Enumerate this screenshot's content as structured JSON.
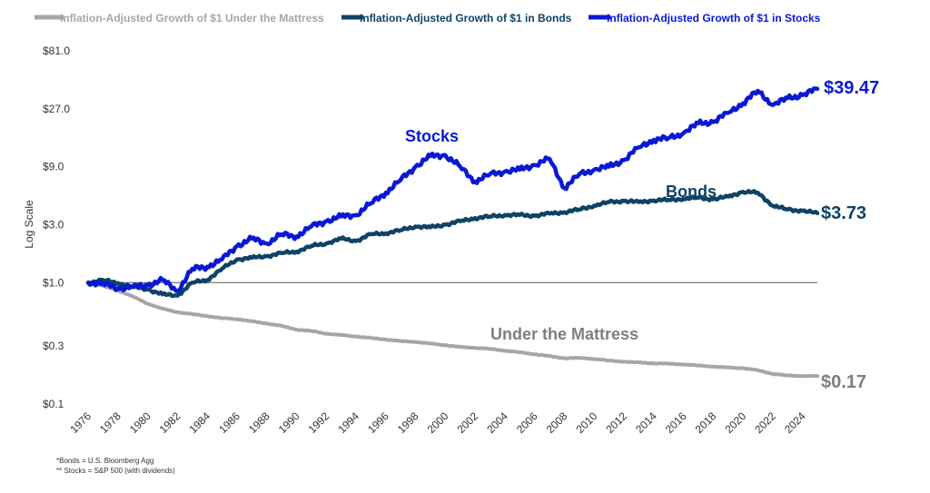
{
  "chart_data": {
    "type": "line",
    "y_axis_title": "Log Scale",
    "y_scale": "log",
    "ylim": [
      0.1,
      81.0
    ],
    "y_ticks": [
      {
        "value": 81.0,
        "label": "$81.0"
      },
      {
        "value": 27.0,
        "label": "$27.0"
      },
      {
        "value": 9.0,
        "label": "$9.0"
      },
      {
        "value": 3.0,
        "label": "$3.0"
      },
      {
        "value": 1.0,
        "label": "$1.0"
      },
      {
        "value": 0.3,
        "label": "$0.3"
      },
      {
        "value": 0.1,
        "label": "$0.1"
      }
    ],
    "xlim": [
      1976,
      2025
    ],
    "x_ticks": [
      "1976",
      "1978",
      "1980",
      "1982",
      "1984",
      "1986",
      "1988",
      "1990",
      "1992",
      "1994",
      "1996",
      "1998",
      "2000",
      "2002",
      "2004",
      "2006",
      "2008",
      "2010",
      "2012",
      "2014",
      "2016",
      "2018",
      "2020",
      "2022",
      "2024"
    ],
    "reference_line": {
      "value": 1.0
    },
    "legend": {
      "placement": "top-left"
    },
    "series": [
      {
        "name": "Inflation-Adjusted Growth of $1 Under the Mattress",
        "short_label": "Under the Mattress",
        "end_label": "$0.17",
        "color": "#a6a6a6",
        "points": [
          [
            1976,
            1.0
          ],
          [
            1977,
            0.94
          ],
          [
            1978,
            0.86
          ],
          [
            1979,
            0.77
          ],
          [
            1980,
            0.67
          ],
          [
            1981,
            0.61
          ],
          [
            1982,
            0.57
          ],
          [
            1983,
            0.55
          ],
          [
            1984,
            0.53
          ],
          [
            1985,
            0.51
          ],
          [
            1986,
            0.5
          ],
          [
            1987,
            0.48
          ],
          [
            1988,
            0.46
          ],
          [
            1989,
            0.44
          ],
          [
            1990,
            0.41
          ],
          [
            1991,
            0.4
          ],
          [
            1992,
            0.38
          ],
          [
            1993,
            0.37
          ],
          [
            1994,
            0.36
          ],
          [
            1995,
            0.35
          ],
          [
            1996,
            0.34
          ],
          [
            1997,
            0.33
          ],
          [
            1998,
            0.325
          ],
          [
            1999,
            0.315
          ],
          [
            2000,
            0.305
          ],
          [
            2001,
            0.295
          ],
          [
            2002,
            0.29
          ],
          [
            2003,
            0.285
          ],
          [
            2004,
            0.275
          ],
          [
            2005,
            0.267
          ],
          [
            2006,
            0.257
          ],
          [
            2007,
            0.248
          ],
          [
            2008,
            0.238
          ],
          [
            2009,
            0.24
          ],
          [
            2010,
            0.235
          ],
          [
            2011,
            0.228
          ],
          [
            2012,
            0.223
          ],
          [
            2013,
            0.22
          ],
          [
            2014,
            0.216
          ],
          [
            2015,
            0.215
          ],
          [
            2016,
            0.212
          ],
          [
            2017,
            0.208
          ],
          [
            2018,
            0.203
          ],
          [
            2019,
            0.2
          ],
          [
            2020,
            0.197
          ],
          [
            2021,
            0.19
          ],
          [
            2022,
            0.177
          ],
          [
            2023,
            0.172
          ],
          [
            2024,
            0.17
          ],
          [
            2025,
            0.17
          ]
        ]
      },
      {
        "name": "Inflation-Adjusted Growth of $1 in Bonds",
        "short_label": "Bonds",
        "end_label": "$3.73",
        "color": "#0e4366",
        "points": [
          [
            1976,
            1.0
          ],
          [
            1977,
            1.05
          ],
          [
            1978,
            0.99
          ],
          [
            1979,
            0.92
          ],
          [
            1980,
            0.88
          ],
          [
            1981,
            0.8
          ],
          [
            1982,
            0.78
          ],
          [
            1983,
            1.0
          ],
          [
            1984,
            1.05
          ],
          [
            1985,
            1.3
          ],
          [
            1986,
            1.55
          ],
          [
            1987,
            1.6
          ],
          [
            1988,
            1.65
          ],
          [
            1989,
            1.75
          ],
          [
            1990,
            1.8
          ],
          [
            1991,
            2.0
          ],
          [
            1992,
            2.1
          ],
          [
            1993,
            2.3
          ],
          [
            1994,
            2.2
          ],
          [
            1995,
            2.5
          ],
          [
            1996,
            2.55
          ],
          [
            1997,
            2.7
          ],
          [
            1998,
            2.9
          ],
          [
            1999,
            2.85
          ],
          [
            2000,
            3.0
          ],
          [
            2001,
            3.2
          ],
          [
            2002,
            3.4
          ],
          [
            2003,
            3.5
          ],
          [
            2004,
            3.6
          ],
          [
            2005,
            3.6
          ],
          [
            2006,
            3.55
          ],
          [
            2007,
            3.7
          ],
          [
            2008,
            3.8
          ],
          [
            2009,
            4.0
          ],
          [
            2010,
            4.3
          ],
          [
            2011,
            4.6
          ],
          [
            2012,
            4.7
          ],
          [
            2013,
            4.6
          ],
          [
            2014,
            4.75
          ],
          [
            2015,
            4.8
          ],
          [
            2016,
            4.9
          ],
          [
            2017,
            5.0
          ],
          [
            2018,
            4.85
          ],
          [
            2019,
            5.1
          ],
          [
            2020,
            5.6
          ],
          [
            2021,
            5.5
          ],
          [
            2022,
            4.3
          ],
          [
            2023,
            4.0
          ],
          [
            2024,
            3.9
          ],
          [
            2025,
            3.73
          ]
        ]
      },
      {
        "name": "Inflation-Adjusted Growth of $1 in Stocks",
        "short_label": "Stocks",
        "end_label": "$39.47",
        "color": "#0a18d6",
        "points": [
          [
            1976,
            1.0
          ],
          [
            1977,
            0.98
          ],
          [
            1978,
            0.9
          ],
          [
            1979,
            0.92
          ],
          [
            1980,
            0.95
          ],
          [
            1981,
            1.05
          ],
          [
            1982,
            0.85
          ],
          [
            1983,
            1.3
          ],
          [
            1984,
            1.35
          ],
          [
            1985,
            1.55
          ],
          [
            1986,
            2.0
          ],
          [
            1987,
            2.3
          ],
          [
            1988,
            2.1
          ],
          [
            1989,
            2.5
          ],
          [
            1990,
            2.4
          ],
          [
            1991,
            2.9
          ],
          [
            1992,
            3.2
          ],
          [
            1993,
            3.5
          ],
          [
            1994,
            3.6
          ],
          [
            1995,
            4.5
          ],
          [
            1996,
            5.5
          ],
          [
            1997,
            7.0
          ],
          [
            1998,
            9.0
          ],
          [
            1999,
            11.0
          ],
          [
            2000,
            11.2
          ],
          [
            2001,
            9.0
          ],
          [
            2002,
            6.8
          ],
          [
            2003,
            7.8
          ],
          [
            2004,
            8.2
          ],
          [
            2005,
            8.5
          ],
          [
            2006,
            9.3
          ],
          [
            2007,
            10.5
          ],
          [
            2008,
            6.0
          ],
          [
            2009,
            7.8
          ],
          [
            2010,
            8.5
          ],
          [
            2011,
            9.0
          ],
          [
            2012,
            10.2
          ],
          [
            2013,
            13.0
          ],
          [
            2014,
            15.0
          ],
          [
            2015,
            15.5
          ],
          [
            2016,
            17.0
          ],
          [
            2017,
            20.5
          ],
          [
            2018,
            21.0
          ],
          [
            2019,
            25.0
          ],
          [
            2020,
            30.0
          ],
          [
            2021,
            38.0
          ],
          [
            2022,
            29.0
          ],
          [
            2023,
            33.0
          ],
          [
            2024,
            35.0
          ],
          [
            2025,
            39.47
          ]
        ]
      }
    ]
  },
  "footnotes": {
    "line1": "*Bonds = U.S. Bloomberg Agg",
    "line2": "** Stocks = S&P 500 (with dividends)"
  }
}
